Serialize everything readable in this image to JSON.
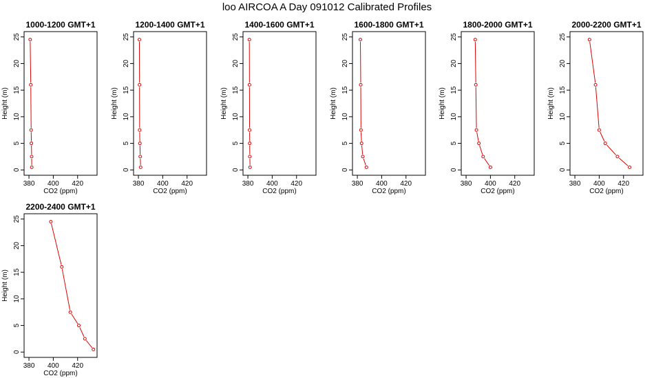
{
  "title": "loo AIRCOA A  Day 091012  Calibrated Profiles",
  "colors": {
    "series": "#dd0000",
    "axis": "#000000"
  },
  "chart_data": [
    {
      "type": "line",
      "title": "1000-1200 GMT+1",
      "xlabel": "CO2 (ppm)",
      "ylabel": "Height (m)",
      "xlim": [
        376,
        436
      ],
      "ylim": [
        -1,
        26
      ],
      "xticks": [
        "380",
        "400",
        "420"
      ],
      "yticks": [
        "0",
        "5",
        "10",
        "15",
        "20",
        "25"
      ],
      "x": [
        382.3,
        382.2,
        382.0,
        381.8,
        381.5,
        381.0
      ],
      "y": [
        0.5,
        2.5,
        5,
        7.5,
        16,
        24.5
      ]
    },
    {
      "type": "line",
      "title": "1200-1400 GMT+1",
      "xlabel": "CO2 (ppm)",
      "ylabel": "Height (m)",
      "xlim": [
        376,
        436
      ],
      "ylim": [
        -1,
        26
      ],
      "xticks": [
        "380",
        "400",
        "420"
      ],
      "yticks": [
        "0",
        "5",
        "10",
        "15",
        "20",
        "25"
      ],
      "x": [
        381.8,
        381.5,
        381.2,
        381.0,
        380.9,
        380.8
      ],
      "y": [
        0.5,
        2.5,
        5,
        7.5,
        16,
        24.5
      ]
    },
    {
      "type": "line",
      "title": "1400-1600 GMT+1",
      "xlabel": "CO2 (ppm)",
      "ylabel": "Height (m)",
      "xlim": [
        376,
        436
      ],
      "ylim": [
        -1,
        26
      ],
      "xticks": [
        "380",
        "400",
        "420"
      ],
      "yticks": [
        "0",
        "5",
        "10",
        "15",
        "20",
        "25"
      ],
      "x": [
        381.8,
        381.6,
        381.5,
        381.4,
        381.3,
        381.2
      ],
      "y": [
        0.5,
        2.5,
        5,
        7.5,
        16,
        24.5
      ]
    },
    {
      "type": "line",
      "title": "1600-1800 GMT+1",
      "xlabel": "CO2 (ppm)",
      "ylabel": "Height (m)",
      "xlim": [
        376,
        436
      ],
      "ylim": [
        -1,
        26
      ],
      "xticks": [
        "380",
        "400",
        "420"
      ],
      "yticks": [
        "0",
        "5",
        "10",
        "15",
        "20",
        "25"
      ],
      "x": [
        387.5,
        384.5,
        383.5,
        383.0,
        382.8,
        382.5
      ],
      "y": [
        0.5,
        2.5,
        5,
        7.5,
        16,
        24.5
      ]
    },
    {
      "type": "line",
      "title": "1800-2000 GMT+1",
      "xlabel": "CO2 (ppm)",
      "ylabel": "Height (m)",
      "xlim": [
        376,
        436
      ],
      "ylim": [
        -1,
        26
      ],
      "xticks": [
        "380",
        "400",
        "420"
      ],
      "yticks": [
        "0",
        "5",
        "10",
        "15",
        "20",
        "25"
      ],
      "x": [
        400.0,
        394.0,
        390.5,
        388.5,
        388.0,
        387.5
      ],
      "y": [
        0.5,
        2.5,
        5,
        7.5,
        16,
        24.5
      ]
    },
    {
      "type": "line",
      "title": "2000-2200 GMT+1",
      "xlabel": "CO2 (ppm)",
      "ylabel": "Height (m)",
      "xlim": [
        376,
        436
      ],
      "ylim": [
        -1,
        26
      ],
      "xticks": [
        "380",
        "400",
        "420"
      ],
      "yticks": [
        "0",
        "5",
        "10",
        "15",
        "20",
        "25"
      ],
      "x": [
        425.0,
        415.0,
        405.0,
        400.0,
        397.0,
        392.0
      ],
      "y": [
        0.5,
        2.5,
        5,
        7.5,
        16,
        24.5
      ]
    },
    {
      "type": "line",
      "title": "2200-2400 GMT+1",
      "xlabel": "CO2 (ppm)",
      "ylabel": "Height (m)",
      "xlim": [
        376,
        436
      ],
      "ylim": [
        -1,
        26
      ],
      "xticks": [
        "380",
        "400",
        "420"
      ],
      "yticks": [
        "0",
        "5",
        "10",
        "15",
        "20",
        "25"
      ],
      "x": [
        433.0,
        426.0,
        421.0,
        414.0,
        407.0,
        398.0
      ],
      "y": [
        0.5,
        2.5,
        5,
        7.5,
        16,
        24.5
      ]
    }
  ]
}
